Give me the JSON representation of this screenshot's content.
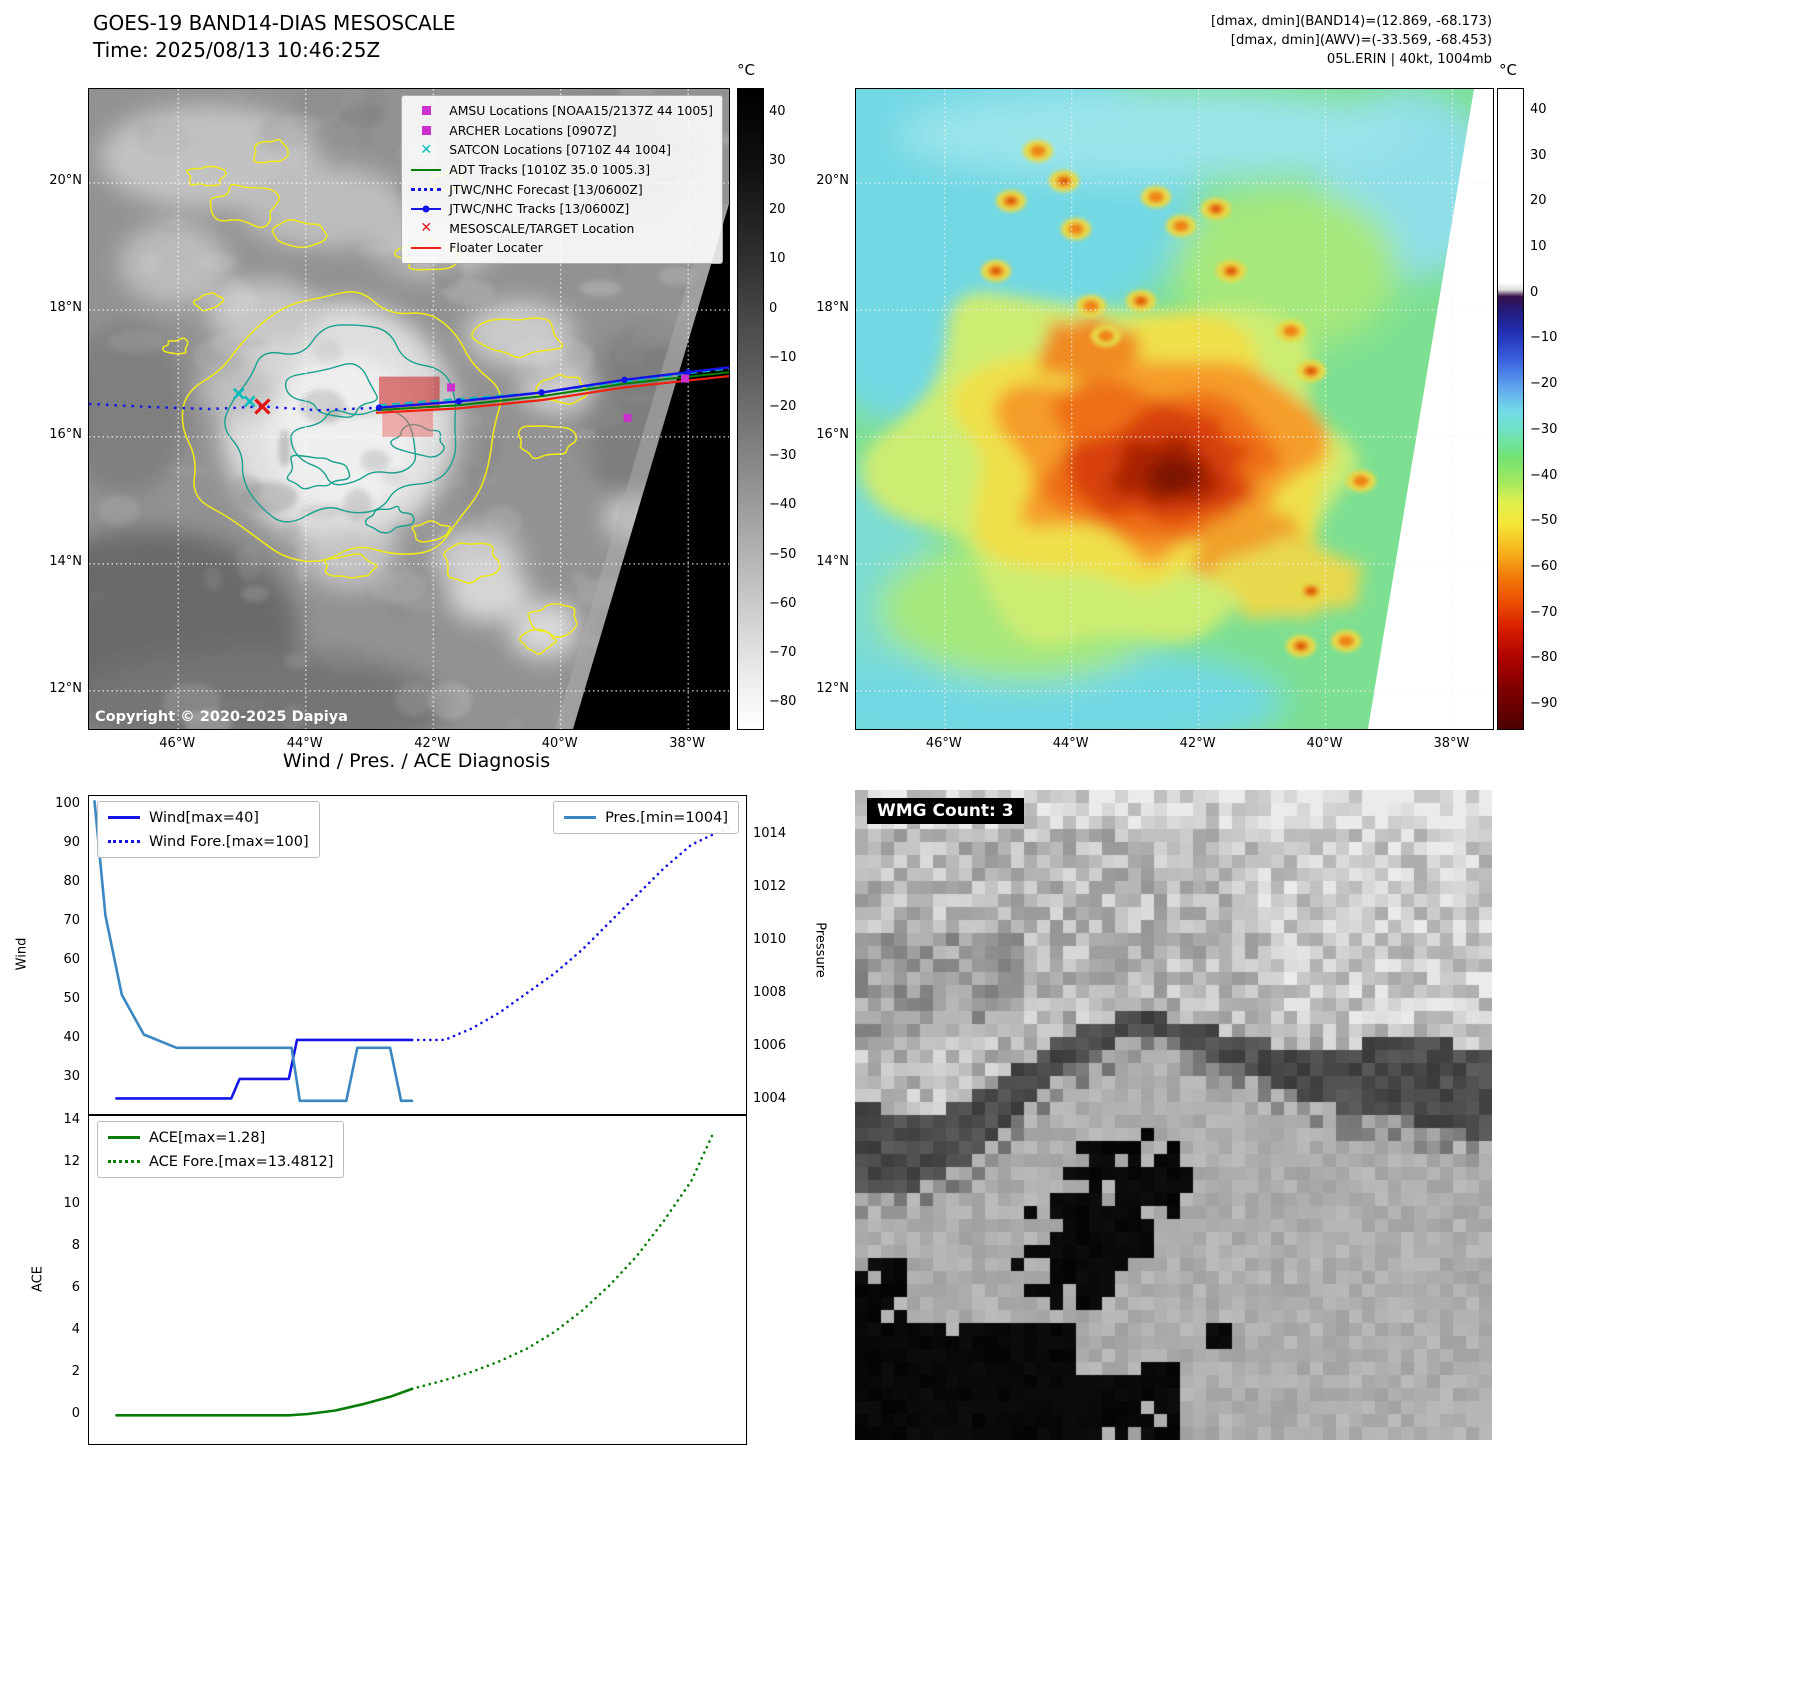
{
  "colors": {
    "wind": "#1414e8",
    "pressure": "#3a87c2",
    "ace": "#077d07",
    "adt_green": "#008000",
    "floater_red": "#ee2211",
    "track_blue": "#1414e8",
    "magenta": "#cc2fcc",
    "cyan": "#00bdbd",
    "target_red": "#e11414"
  },
  "panel_tl": {
    "title": "GOES-19 BAND14-DIAS MESOSCALE",
    "subtitle": "Time: 2025/08/13 10:46:25Z",
    "copyright": "Copyright © 2020-2025 Dapiya",
    "legend": [
      {
        "marker": "square-magenta",
        "label": "AMSU Locations [NOAA15/2137Z 44 1005]"
      },
      {
        "marker": "square-magenta",
        "label": "ARCHER Locations [0907Z]"
      },
      {
        "marker": "x-cyan",
        "label": "SATCON Locations [0710Z 44 1004]"
      },
      {
        "marker": "line-green",
        "label": "ADT Tracks [1010Z 35.0 1005.3]"
      },
      {
        "marker": "dotted-blue",
        "label": "JTWC/NHC Forecast [13/0600Z]"
      },
      {
        "marker": "line-dot-blue",
        "label": "JTWC/NHC Tracks [13/0600Z]"
      },
      {
        "marker": "x-red",
        "label": "MESOSCALE/TARGET Location"
      },
      {
        "marker": "line-red",
        "label": "Floater Locater"
      }
    ],
    "lat_tick_labels": [
      "20°N",
      "18°N",
      "16°N",
      "14°N",
      "12°N"
    ],
    "lat_tick_values": [
      20,
      18,
      16,
      14,
      12
    ],
    "lon_tick_labels": [
      "46°W",
      "44°W",
      "42°W",
      "40°W",
      "38°W"
    ],
    "lon_tick_values": [
      -46,
      -44,
      -42,
      -40,
      -38
    ],
    "colorbar": {
      "unit": "°C",
      "range": [
        45,
        -85
      ],
      "ticks": [
        40,
        30,
        20,
        10,
        0,
        -10,
        -20,
        -30,
        -40,
        -50,
        -60,
        -70,
        -80
      ]
    },
    "features": {
      "target_box_upper": {
        "lon": [
          -42.85,
          -41.9
        ],
        "lat": [
          16.45,
          16.95
        ]
      },
      "target_box_lower": {
        "lon": [
          -42.8,
          -42.0
        ],
        "lat": [
          16.0,
          16.47
        ]
      },
      "mesoscale_target": {
        "lon": -44.68,
        "lat": 16.48
      },
      "amsu_points": [
        {
          "lon": -41.72,
          "lat": 16.78
        }
      ],
      "archer_points": [
        {
          "lon": -38.05,
          "lat": 16.92
        },
        {
          "lon": -38.95,
          "lat": 16.3
        }
      ],
      "satcon_points": [
        {
          "lon": -45.05,
          "lat": 16.68
        },
        {
          "lon": -44.88,
          "lat": 16.56
        }
      ],
      "forecast_track": [
        [
          -47.4,
          16.52
        ],
        [
          -46.4,
          16.47
        ],
        [
          -45.5,
          16.44
        ],
        [
          -44.68,
          16.48
        ],
        [
          -43.8,
          16.42
        ],
        [
          -42.85,
          16.46
        ]
      ],
      "jtwc_track": [
        [
          -42.85,
          16.46
        ],
        [
          -41.6,
          16.56
        ],
        [
          -40.3,
          16.7
        ],
        [
          -39.0,
          16.9
        ],
        [
          -38.0,
          17.02
        ],
        [
          -37.15,
          17.12
        ]
      ],
      "adt_track": [
        [
          -42.9,
          16.42
        ],
        [
          -41.6,
          16.5
        ],
        [
          -40.3,
          16.64
        ],
        [
          -39.0,
          16.84
        ],
        [
          -37.15,
          17.04
        ]
      ],
      "satcon_track": [
        [
          -42.85,
          16.5
        ],
        [
          -40.3,
          16.7
        ],
        [
          -38.0,
          17.0
        ],
        [
          -37.15,
          17.1
        ]
      ],
      "floater_track": [
        [
          -42.9,
          16.38
        ],
        [
          -41.6,
          16.45
        ],
        [
          -40.3,
          16.58
        ],
        [
          -39.0,
          16.78
        ],
        [
          -37.15,
          16.98
        ]
      ]
    }
  },
  "panel_tr": {
    "header_lines": [
      "[dmax, dmin](BAND14)=(12.869, -68.173)",
      "[dmax, dmin](AWV)=(-33.569, -68.453)",
      "05L.ERIN | 40kt, 1004mb"
    ],
    "lat_tick_labels": [
      "20°N",
      "18°N",
      "16°N",
      "14°N",
      "12°N"
    ],
    "lat_tick_values": [
      20,
      18,
      16,
      14,
      12
    ],
    "lon_tick_labels": [
      "46°W",
      "44°W",
      "42°W",
      "40°W",
      "38°W"
    ],
    "lon_tick_values": [
      -46,
      -44,
      -42,
      -40,
      -38
    ],
    "colorbar": {
      "unit": "°C",
      "range": [
        45,
        -95
      ],
      "ticks": [
        40,
        30,
        20,
        10,
        0,
        -10,
        -20,
        -30,
        -40,
        -50,
        -60,
        -70,
        -80,
        -90
      ]
    }
  },
  "charts": {
    "section_title": "Wind / Pres. / ACE Diagnosis"
  },
  "chart_data": [
    {
      "type": "line",
      "title": "Wind / Pres. / ACE Diagnosis",
      "ylabel_left": "Wind",
      "ylabel_right": "Pressure",
      "x_range": [
        0,
        24
      ],
      "y_left_range": [
        21,
        102.5
      ],
      "y_right_range": [
        1003.5,
        1015.5
      ],
      "y_left_ticks": [
        100,
        90,
        80,
        70,
        60,
        50,
        40,
        30
      ],
      "y_right_ticks": [
        1014,
        1012,
        1010,
        1008,
        1006,
        1004
      ],
      "grid": false,
      "series": [
        {
          "name": "Wind[max=40]",
          "legend_box": "left",
          "axis": "left",
          "style": "solid",
          "color_key": "wind",
          "x": [
            1,
            5.2,
            5.5,
            7.3,
            7.6,
            11.8
          ],
          "values": [
            25,
            25,
            30,
            30,
            40,
            40
          ]
        },
        {
          "name": "Wind Fore.[max=100]",
          "legend_box": "left",
          "axis": "left",
          "style": "dotted",
          "color_key": "wind",
          "x": [
            11.8,
            13,
            14,
            15,
            16,
            17,
            18,
            19,
            20,
            21,
            22,
            23.5
          ],
          "values": [
            40,
            40,
            43,
            47,
            52,
            57,
            63,
            70,
            77,
            84,
            90,
            95
          ]
        },
        {
          "name": "Pres.[min=1004]",
          "legend_box": "right",
          "axis": "right",
          "style": "solid",
          "color_key": "pressure",
          "x": [
            0.2,
            0.6,
            1.2,
            2,
            3.2,
            7.4,
            7.7,
            9.4,
            9.8,
            11.0,
            11.4,
            11.8
          ],
          "values": [
            1015.3,
            1011,
            1008,
            1006.5,
            1006,
            1006,
            1004,
            1004,
            1006,
            1006,
            1004,
            1004
          ]
        }
      ]
    },
    {
      "type": "line",
      "ylabel_left": "ACE",
      "x_range": [
        0,
        24
      ],
      "y_left_range": [
        -1.35,
        14.3
      ],
      "y_left_ticks": [
        14,
        12,
        10,
        8,
        6,
        4,
        2,
        0
      ],
      "grid": false,
      "series": [
        {
          "name": "ACE[max=1.28]",
          "legend_box": "left",
          "axis": "left",
          "style": "solid",
          "color_key": "ace",
          "x": [
            1,
            7.3,
            8,
            9,
            10,
            11,
            11.8
          ],
          "values": [
            0.02,
            0.02,
            0.08,
            0.25,
            0.55,
            0.9,
            1.28
          ]
        },
        {
          "name": "ACE Fore.[max=13.4812]",
          "legend_box": "left",
          "axis": "left",
          "style": "dotted",
          "color_key": "ace",
          "x": [
            11.8,
            13,
            14,
            15,
            16,
            17,
            18,
            19,
            20,
            21,
            22,
            22.8
          ],
          "values": [
            1.28,
            1.7,
            2.1,
            2.6,
            3.2,
            4.0,
            5.0,
            6.2,
            7.6,
            9.3,
            11.2,
            13.48
          ]
        }
      ]
    }
  ],
  "panel_br": {
    "wmg_label": "WMG Count: 3"
  }
}
